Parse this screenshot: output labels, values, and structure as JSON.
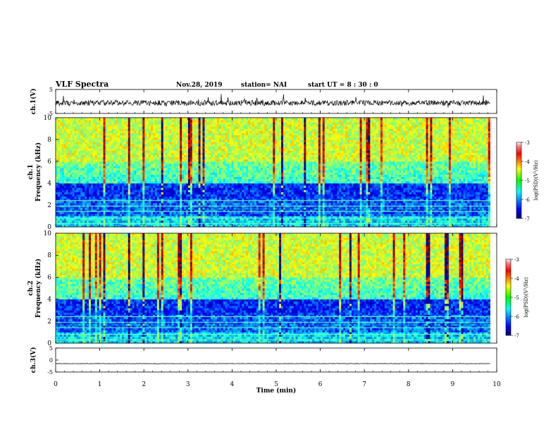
{
  "header": {
    "title": "VLF Spectra",
    "date": "Nov.28, 2019",
    "station": "station= NAI",
    "start": "start  UT =   8 : 30 : 0"
  },
  "chart_data": [
    {
      "type": "line",
      "panel": "ch1-waveform",
      "ylabel": "ch.1(V)",
      "ylim": [
        -5,
        5
      ],
      "yticks": [
        5,
        -5
      ],
      "xlim": [
        0,
        10
      ],
      "baseline": -0.6,
      "amplitude": 1.4
    },
    {
      "type": "heatmap",
      "panel": "ch1-spectrogram",
      "ylabel": "ch.1\nFrequency (kHz)",
      "ylabel_lines": [
        "ch.1",
        "Frequency (kHz)"
      ],
      "ylim": [
        0,
        10
      ],
      "yticks": [
        0,
        2,
        4,
        6,
        8,
        10
      ],
      "xlim": [
        0,
        10
      ],
      "data_xmax": 9.85,
      "colorbar": {
        "label": "log(PSD)(V²/Hz)",
        "range": [
          -7,
          -3
        ],
        "ticks": [
          -3,
          -4,
          -5,
          -6,
          -7
        ],
        "colormap": "jet"
      }
    },
    {
      "type": "heatmap",
      "panel": "ch2-spectrogram",
      "ylabel": "ch.2\nFrequency (kHz)",
      "ylabel_lines": [
        "ch.2",
        "Frequency (kHz)"
      ],
      "ylim": [
        0,
        10
      ],
      "yticks": [
        0,
        2,
        4,
        6,
        8,
        10
      ],
      "xlim": [
        0,
        10
      ],
      "data_xmax": 9.85,
      "colorbar": {
        "label": "log(PSD)(V²/Hz)",
        "range": [
          -7,
          -3
        ],
        "ticks": [
          -3,
          -4,
          -5,
          -6,
          -7
        ],
        "colormap": "jet"
      }
    },
    {
      "type": "line",
      "panel": "ch3-waveform",
      "ylabel": "ch.3(V)",
      "ylim": [
        -5,
        5
      ],
      "yticks": [
        5,
        0,
        -5
      ],
      "xlim": [
        0,
        10
      ],
      "baseline": -1.5,
      "amplitude": 0.15
    }
  ],
  "xaxis": {
    "label": "Time  (min)",
    "ticks": [
      0,
      1,
      2,
      3,
      4,
      5,
      6,
      7,
      8,
      9,
      10
    ]
  }
}
